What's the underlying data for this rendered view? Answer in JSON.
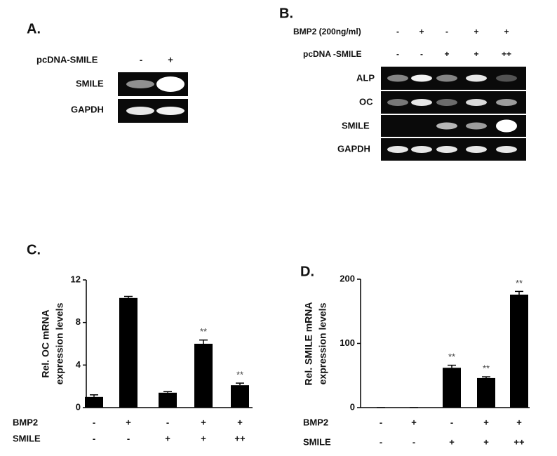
{
  "gel_a": {
    "panel": "A.",
    "treatment": {
      "name": "pcDNA-SMILE",
      "lanes": [
        "-",
        "+"
      ]
    },
    "rows": [
      "SMILE",
      "GAPDH"
    ]
  },
  "gel_b": {
    "panel": "B.",
    "treatments": [
      {
        "name": "BMP2 (200ng/ml)",
        "lanes": [
          "-",
          "+",
          "-",
          "+",
          "+"
        ]
      },
      {
        "name": "pcDNA -SMILE",
        "lanes": [
          "-",
          "-",
          "+",
          "+",
          "++"
        ]
      }
    ],
    "rows": [
      "ALP",
      "OC",
      "SMILE",
      "GAPDH"
    ]
  },
  "chart_data": [
    {
      "type": "bar",
      "panel": "C.",
      "ylabel": [
        "Rel. OC mRNA",
        "expression levels"
      ],
      "values": [
        1.0,
        10.3,
        1.4,
        6.0,
        2.1
      ],
      "errors": [
        0.2,
        0.15,
        0.1,
        0.35,
        0.2
      ],
      "significance": [
        null,
        null,
        null,
        "**",
        "**"
      ],
      "conditions": [
        {
          "name": "BMP2",
          "labels": [
            "-",
            "+",
            "-",
            "+",
            "+"
          ]
        },
        {
          "name": "SMILE",
          "labels": [
            "-",
            "-",
            "+",
            "+",
            "++"
          ]
        }
      ],
      "color": "#000000",
      "ylim": [
        0,
        12
      ],
      "yticks": [
        0,
        4,
        8,
        12
      ]
    },
    {
      "type": "bar",
      "panel": "D.",
      "ylabel": [
        "Rel. SMILE mRNA",
        "expression levels"
      ],
      "values": [
        0,
        0,
        62,
        46,
        176
      ],
      "errors": [
        0,
        0,
        4,
        2,
        5
      ],
      "significance": [
        null,
        null,
        "**",
        "**",
        "**"
      ],
      "conditions": [
        {
          "name": "BMP2",
          "labels": [
            "-",
            "+",
            "-",
            "+",
            "+"
          ]
        },
        {
          "name": "SMILE",
          "labels": [
            "-",
            "-",
            "+",
            "+",
            "++"
          ]
        }
      ],
      "color": "#000000",
      "ylim": [
        0,
        200
      ],
      "yticks": [
        0,
        100,
        200
      ]
    }
  ]
}
